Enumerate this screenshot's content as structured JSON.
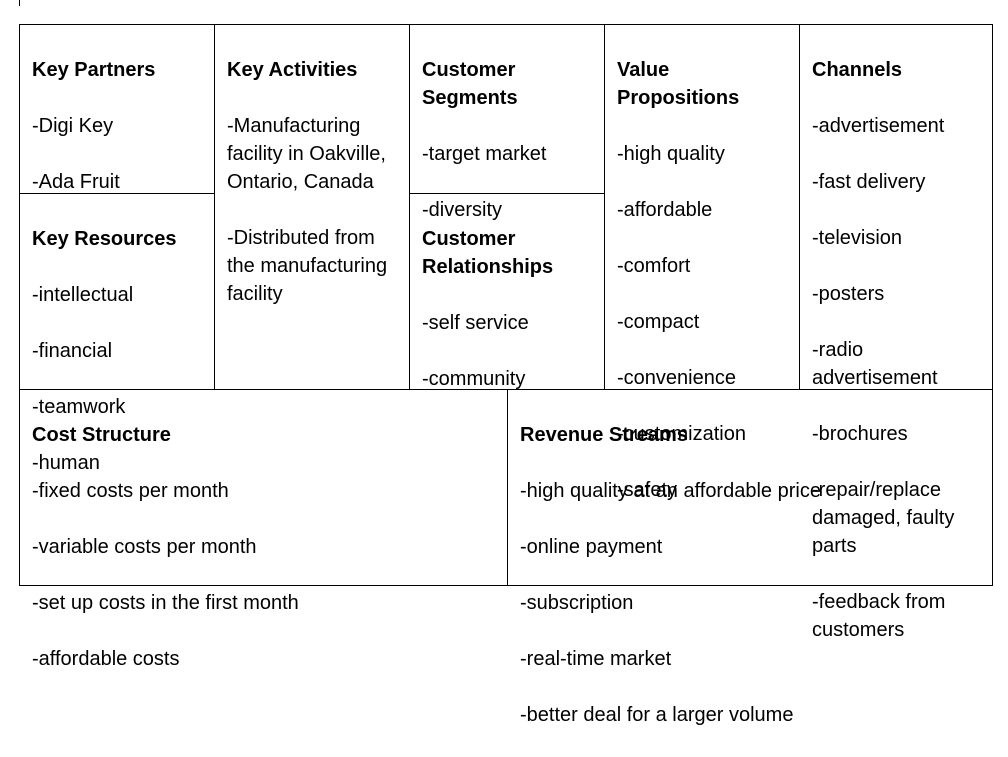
{
  "canvas": {
    "key_partners": {
      "title": "Key Partners",
      "items": [
        "-Digi Key",
        "-Ada Fruit"
      ]
    },
    "key_resources": {
      "title": "Key Resources",
      "items": [
        "-intellectual",
        "-financial",
        "-teamwork",
        "-human"
      ]
    },
    "key_activities": {
      "title": "Key Activities",
      "items": [
        "-Manufacturing facility in Oakville, Ontario, Canada",
        "-Distributed from the manufacturing facility"
      ]
    },
    "customer_segments": {
      "title": "Customer Segments",
      "items": [
        "-target market",
        "-diversity"
      ]
    },
    "customer_relationships": {
      "title": "Customer Relationships",
      "items": [
        "-self service",
        "-community"
      ]
    },
    "value_propositions": {
      "title": "Value Propositions",
      "items": [
        "-high quality",
        "-affordable",
        "-comfort",
        "-compact",
        "-convenience",
        "-customization",
        "-safety"
      ]
    },
    "channels": {
      "title": "Channels",
      "items": [
        "-advertisement",
        "-fast delivery",
        "-television",
        "-posters",
        "-radio advertisement",
        "-brochures",
        "-repair/replace damaged, faulty parts",
        "-feedback from customers"
      ]
    },
    "cost_structure": {
      "title": "Cost Structure",
      "items": [
        "-fixed costs per month",
        "-variable costs per month",
        "-set up costs in the first month",
        "-affordable costs"
      ]
    },
    "revenue_streams": {
      "title": "Revenue Streams",
      "items": [
        "-high quality at an affordable price",
        "-online payment",
        "-subscription",
        "-real-time market",
        "-better deal for a larger volume"
      ]
    }
  }
}
